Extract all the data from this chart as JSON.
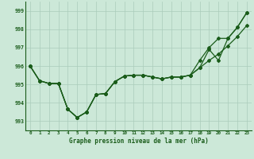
{
  "title": "Graphe pression niveau de la mer (hPa)",
  "background_color": "#cce8d8",
  "grid_color": "#aaccbb",
  "line_color": "#1a5c1a",
  "xlim": [
    -0.5,
    23.5
  ],
  "ylim": [
    992.5,
    999.5
  ],
  "yticks": [
    993,
    994,
    995,
    996,
    997,
    998,
    999
  ],
  "xticks": [
    0,
    1,
    2,
    3,
    4,
    5,
    6,
    7,
    8,
    9,
    10,
    11,
    12,
    13,
    14,
    15,
    16,
    17,
    18,
    19,
    20,
    21,
    22,
    23
  ],
  "series1": [
    996.0,
    995.2,
    995.05,
    995.05,
    993.65,
    993.2,
    993.5,
    994.45,
    994.5,
    995.15,
    995.45,
    995.5,
    995.5,
    995.4,
    995.3,
    995.4,
    995.4,
    995.5,
    995.9,
    996.3,
    996.65,
    997.1,
    997.6,
    998.2
  ],
  "series2": [
    996.0,
    995.2,
    995.05,
    995.05,
    993.65,
    993.2,
    993.5,
    994.45,
    994.5,
    995.15,
    995.45,
    995.5,
    995.5,
    995.4,
    995.3,
    995.4,
    995.4,
    995.5,
    995.9,
    996.9,
    996.3,
    997.5,
    998.1,
    998.9
  ],
  "series3": [
    996.0,
    995.2,
    995.05,
    995.05,
    993.65,
    993.2,
    993.5,
    994.45,
    994.5,
    995.15,
    995.45,
    995.5,
    995.5,
    995.4,
    995.3,
    995.4,
    995.4,
    995.5,
    996.3,
    997.0,
    997.5,
    997.5,
    998.1,
    998.9
  ]
}
